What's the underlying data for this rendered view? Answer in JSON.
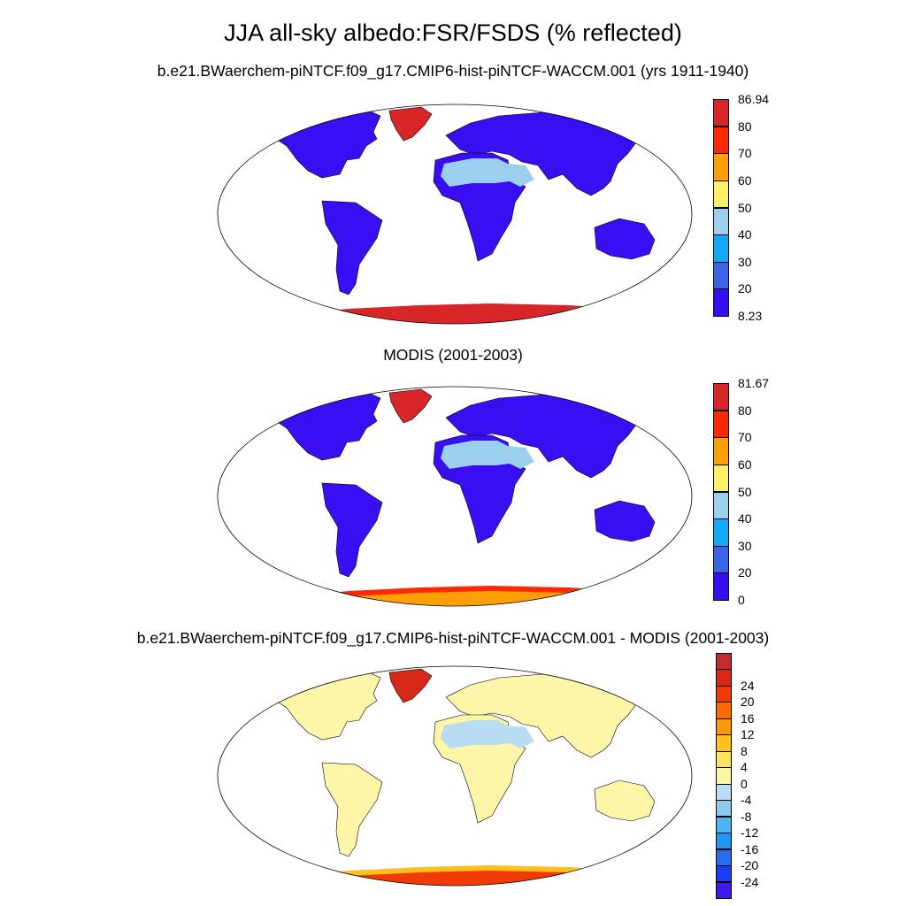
{
  "figure": {
    "title": "JJA all-sky albedo:FSR/FSDS (% reflected)",
    "panels": [
      {
        "title": "b.e21.BWaerchem-piNTCF.f09_g17.CMIP6-hist-piNTCF-WACCM.001 (yrs 1911-1940)",
        "colorbar": {
          "colors": [
            "#3a0ef2",
            "#3a64e8",
            "#10a8f7",
            "#9ad0ee",
            "#fdf064",
            "#fd9f05",
            "#fd2a00",
            "#d82628"
          ],
          "labels": [
            "8.23",
            "20",
            "30",
            "40",
            "50",
            "60",
            "70",
            "80",
            "86.94"
          ]
        },
        "regions": {
          "land": "#3a0ef2",
          "desert": "#9ad0ee",
          "desert_edge": "#10a8f7",
          "greenland": "#d82628",
          "antarctica": "#d82628",
          "antarctica_edge": "#d82628"
        }
      },
      {
        "title": "MODIS (2001-2003)",
        "colorbar": {
          "colors": [
            "#3a0ef2",
            "#3a64e8",
            "#10a8f7",
            "#9ad0ee",
            "#fdf064",
            "#fd9f05",
            "#fd2a00",
            "#d82628"
          ],
          "labels": [
            "0",
            "20",
            "30",
            "40",
            "50",
            "60",
            "70",
            "80",
            "81.67"
          ]
        },
        "regions": {
          "land": "#3a0ef2",
          "desert": "#9ad0ee",
          "desert_edge": "#10a8f7",
          "greenland": "#d82628",
          "antarctica": "#fd9f05",
          "antarctica_edge": "#fd2a00"
        }
      },
      {
        "title": "b.e21.BWaerchem-piNTCF.f09_g17.CMIP6-hist-piNTCF-WACCM.001 - MODIS (2001-2003)",
        "colorbar": {
          "colors": [
            "#3b1cf0",
            "#1a3ef5",
            "#2a6ef0",
            "#2196f3",
            "#4db6f0",
            "#8ccaf0",
            "#b8dcf2",
            "#fdf6a8",
            "#fde35e",
            "#fdc01e",
            "#fd9808",
            "#fd6a00",
            "#f23a05",
            "#d8281a",
            "#c22b30"
          ],
          "labels": [
            "-24",
            "-20",
            "-16",
            "-12",
            "-8",
            "-4",
            "0",
            "4",
            "8",
            "12",
            "16",
            "20",
            "24"
          ]
        },
        "regions": {
          "land": "#fdf6a8",
          "desert": "#b8dcf2",
          "desert_edge": "#fdf6a8",
          "greenland": "#d8281a",
          "antarctica": "#f23a05",
          "antarctica_edge": "#fdc01e"
        }
      }
    ]
  }
}
